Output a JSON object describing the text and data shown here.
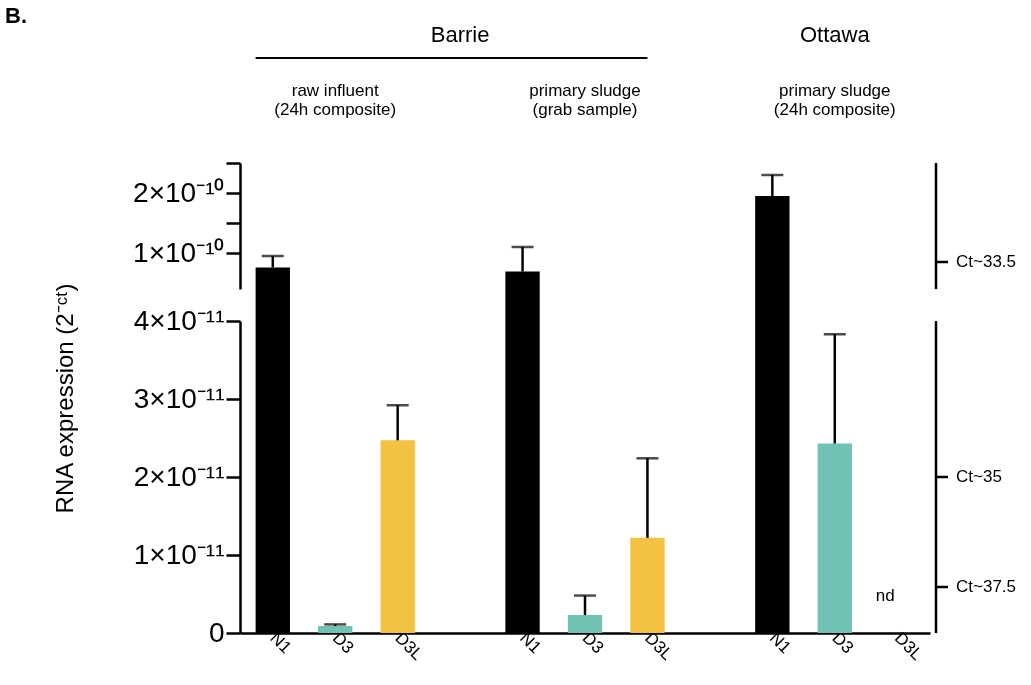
{
  "chart_data": [
    {
      "type": "bar",
      "categories": [
        null,
        null,
        null
      ],
      "values": [
        7.6e-11,
        6.9e-11,
        1.95e-10
      ],
      "colors": [
        "#000000",
        "#000000",
        "#000000"
      ],
      "errors": [
        [
          7.6e-11,
          9.5e-11
        ],
        [
          6.9e-11,
          1.1e-10
        ],
        [
          1.95e-10,
          2.3e-10
        ]
      ],
      "ylim": [
        4e-11,
        2.5e-10
      ],
      "yticks": [
        {
          "value": 1e-10,
          "label": "1×10⁻¹⁰"
        },
        {
          "value": 2e-10,
          "label": "2×10⁻¹⁰"
        }
      ],
      "tick_labels": "y",
      "grid": false,
      "annotations": [
        "B.",
        "Barrie",
        "Ottawa",
        "raw influent\n(24h composite)",
        "primary sludge\n(grab sample)",
        "primary sludge\n(24h composite)",
        "Ct~33.5"
      ]
    },
    {
      "type": "bar",
      "categories": [
        "N1",
        "D3",
        "D3L",
        "N1",
        "D3",
        "D3L",
        "N1",
        "D3",
        "D3L"
      ],
      "values": [
        null,
        9e-13,
        2.47e-11,
        null,
        2.3e-12,
        1.22e-11,
        null,
        2.43e-11,
        null
      ],
      "colors": [
        "#000000",
        "#6fc2b4",
        "#f4c242",
        "#000000",
        "#6fc2b4",
        "#f4c242",
        "#000000",
        "#6fc2b4",
        "#f4c242"
      ],
      "errors": [
        null,
        [
          9e-13,
          1.1e-12
        ],
        [
          2.47e-11,
          2.92e-11
        ],
        null,
        [
          2.3e-12,
          4.8e-12
        ],
        [
          1.22e-11,
          2.24e-11
        ],
        null,
        [
          2.43e-11,
          3.83e-11
        ],
        null
      ],
      "ylabel": "RNA expression (2⁻ᶜᵗ)",
      "ylim": [
        0,
        4e-11
      ],
      "yticks": [
        {
          "value": 0,
          "label": "0"
        },
        {
          "value": 1e-11,
          "label": "1×10⁻¹¹"
        },
        {
          "value": 2e-11,
          "label": "2×10⁻¹¹"
        },
        {
          "value": 3e-11,
          "label": "3×10⁻¹¹"
        },
        {
          "value": 4e-11,
          "label": "4×10⁻¹¹"
        }
      ],
      "grid": false,
      "annotations": [
        "nd",
        "Ct~35",
        "Ct~37.5"
      ]
    }
  ]
}
